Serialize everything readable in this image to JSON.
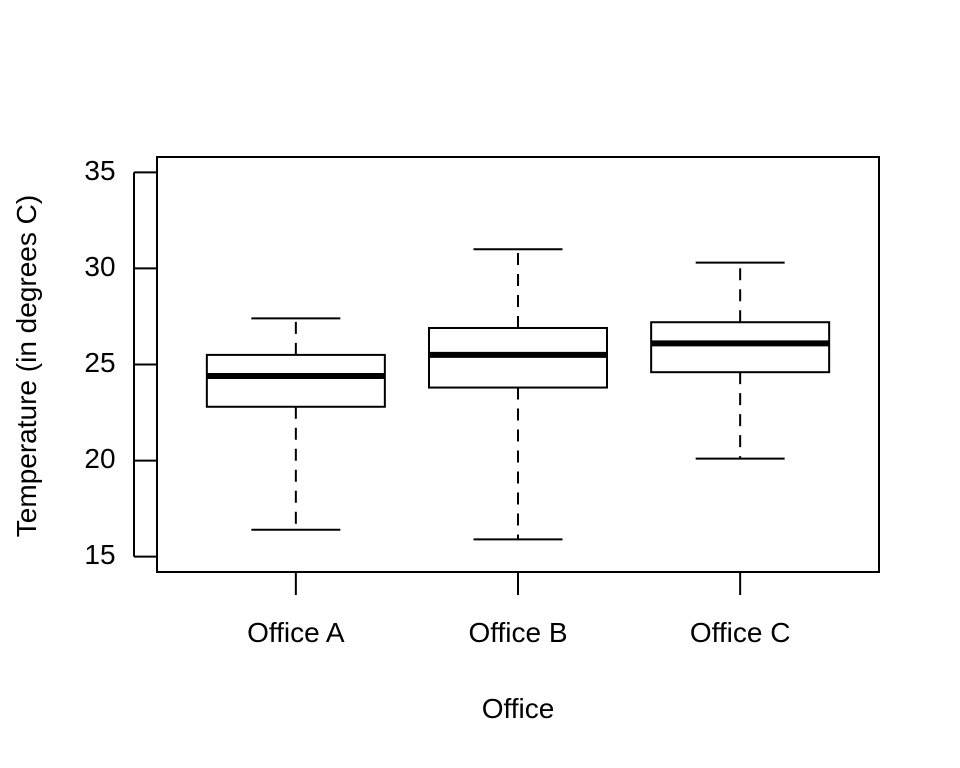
{
  "chart_data": {
    "type": "box",
    "title": "",
    "xlabel": "Office",
    "ylabel": "Temperature (in degrees C)",
    "ylim": [
      14.2,
      35.8
    ],
    "yticks": [
      15,
      20,
      25,
      30,
      35
    ],
    "yticklabels": [
      "15",
      "20",
      "25",
      "30",
      "35"
    ],
    "grid": false,
    "categories": [
      "Office A",
      "Office B",
      "Office C"
    ],
    "boxes": [
      {
        "min": 16.4,
        "q1": 22.8,
        "median": 24.4,
        "q3": 25.5,
        "max": 27.4
      },
      {
        "min": 15.9,
        "q1": 23.8,
        "median": 25.5,
        "q3": 26.9,
        "max": 31.0
      },
      {
        "min": 20.1,
        "q1": 24.6,
        "median": 26.1,
        "q3": 27.2,
        "max": 30.3
      }
    ],
    "colors": {
      "box_fill": "#ffffff",
      "stroke": "#000000"
    }
  }
}
